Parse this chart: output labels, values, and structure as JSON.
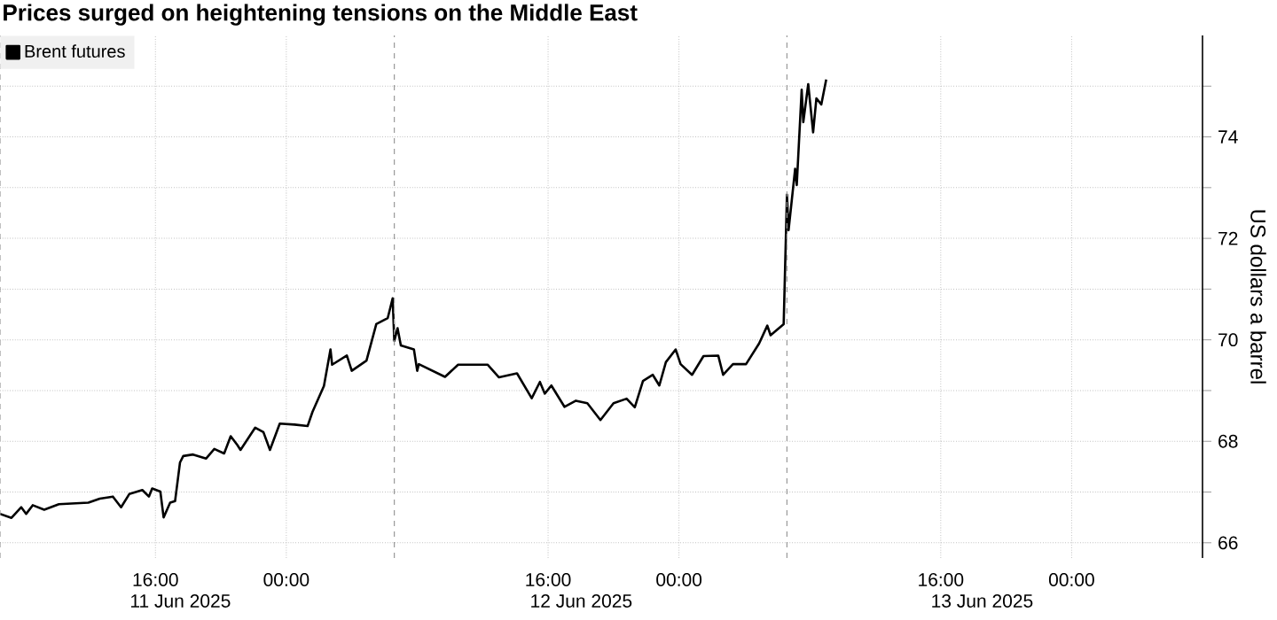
{
  "chart_data": {
    "type": "line",
    "title": "Prices surged on heightening tensions on the Middle East",
    "ylabel": "US dollars a barrel",
    "x": [
      "2025-06-11T06:30",
      "2025-06-11T07:12",
      "2025-06-11T07:48",
      "2025-06-11T08:06",
      "2025-06-11T08:30",
      "2025-06-11T09:12",
      "2025-06-11T10:06",
      "2025-06-11T11:54",
      "2025-06-11T12:36",
      "2025-06-11T13:24",
      "2025-06-11T13:54",
      "2025-06-11T14:24",
      "2025-06-11T15:12",
      "2025-06-11T15:36",
      "2025-06-11T15:48",
      "2025-06-11T16:18",
      "2025-06-11T16:30",
      "2025-06-11T16:54",
      "2025-06-11T17:12",
      "2025-06-11T17:30",
      "2025-06-11T17:42",
      "2025-06-11T18:18",
      "2025-06-11T19:06",
      "2025-06-11T19:36",
      "2025-06-11T20:12",
      "2025-06-11T20:36",
      "2025-06-11T21:00",
      "2025-06-11T21:12",
      "2025-06-11T22:06",
      "2025-06-11T22:36",
      "2025-06-11T23:00",
      "2025-06-11T23:36",
      "2025-06-12T00:30",
      "2025-06-12T01:18",
      "2025-06-12T01:36",
      "2025-06-12T02:18",
      "2025-06-12T02:42",
      "2025-06-12T02:48",
      "2025-06-12T03:42",
      "2025-06-12T04:00",
      "2025-06-12T04:54",
      "2025-06-12T05:30",
      "2025-06-12T06:12",
      "2025-06-12T06:30",
      "2025-06-12T06:36",
      "2025-06-12T06:48",
      "2025-06-12T07:00",
      "2025-06-12T07:48",
      "2025-06-12T08:00",
      "2025-06-12T08:06",
      "2025-06-12T09:42",
      "2025-06-12T10:30",
      "2025-06-12T12:18",
      "2025-06-12T13:00",
      "2025-06-12T14:06",
      "2025-06-12T15:00",
      "2025-06-12T15:30",
      "2025-06-12T15:48",
      "2025-06-12T16:12",
      "2025-06-12T17:00",
      "2025-06-12T17:42",
      "2025-06-12T18:24",
      "2025-06-12T19:12",
      "2025-06-12T20:00",
      "2025-06-12T20:48",
      "2025-06-12T21:18",
      "2025-06-12T21:48",
      "2025-06-12T22:24",
      "2025-06-12T22:48",
      "2025-06-12T23:12",
      "2025-06-12T23:48",
      "2025-06-13T00:06",
      "2025-06-13T00:48",
      "2025-06-13T01:30",
      "2025-06-13T02:24",
      "2025-06-13T02:42",
      "2025-06-13T03:18",
      "2025-06-13T04:06",
      "2025-06-13T04:54",
      "2025-06-13T05:24",
      "2025-06-13T05:36",
      "2025-06-13T06:24",
      "2025-06-13T06:36",
      "2025-06-13T06:42",
      "2025-06-13T07:06",
      "2025-06-13T07:12",
      "2025-06-13T07:30",
      "2025-06-13T07:36",
      "2025-06-13T07:54",
      "2025-06-13T08:12",
      "2025-06-13T08:24",
      "2025-06-13T08:42",
      "2025-06-13T09:00"
    ],
    "series": [
      {
        "name": "Brent futures",
        "color": "#000000",
        "values": [
          66.57,
          66.49,
          66.7,
          66.57,
          66.74,
          66.65,
          66.76,
          66.79,
          66.87,
          66.91,
          66.7,
          66.96,
          67.04,
          66.91,
          67.07,
          67.01,
          66.5,
          66.79,
          66.82,
          67.58,
          67.71,
          67.74,
          67.66,
          67.85,
          67.76,
          68.1,
          67.93,
          67.83,
          68.27,
          68.18,
          67.83,
          68.35,
          68.33,
          68.3,
          68.58,
          69.09,
          69.81,
          69.51,
          69.69,
          69.39,
          69.59,
          70.31,
          70.43,
          70.82,
          69.98,
          70.23,
          69.89,
          69.81,
          69.39,
          69.52,
          69.27,
          69.51,
          69.51,
          69.26,
          69.34,
          68.85,
          69.17,
          68.94,
          69.1,
          68.68,
          68.8,
          68.75,
          68.42,
          68.75,
          68.84,
          68.67,
          69.19,
          69.31,
          69.1,
          69.56,
          69.81,
          69.52,
          69.31,
          69.68,
          69.69,
          69.31,
          69.52,
          69.52,
          69.93,
          70.28,
          70.09,
          70.31,
          72.86,
          72.16,
          73.37,
          73.05,
          74.93,
          74.29,
          75.04,
          74.09,
          74.76,
          74.64,
          75.13
        ]
      }
    ],
    "xlim": [
      "2025-06-11T06:30",
      "2025-06-14T08:00"
    ],
    "xticks": [
      {
        "value": "2025-06-11T16:00",
        "label": "16:00"
      },
      {
        "value": "2025-06-12T00:00",
        "label": "00:00"
      },
      {
        "value": "2025-06-12T16:00",
        "label": "16:00"
      },
      {
        "value": "2025-06-13T00:00",
        "label": "00:00"
      },
      {
        "value": "2025-06-13T16:00",
        "label": "16:00"
      },
      {
        "value": "2025-06-14T00:00",
        "label": "00:00"
      }
    ],
    "ylim": [
      65.7,
      76
    ],
    "yticks": [
      {
        "value": 66,
        "label": "66"
      },
      {
        "value": 67,
        "label": null
      },
      {
        "value": 68,
        "label": "68"
      },
      {
        "value": 69,
        "label": null
      },
      {
        "value": 70,
        "label": "70"
      },
      {
        "value": 71,
        "label": null
      },
      {
        "value": 72,
        "label": "72"
      },
      {
        "value": 73,
        "label": null
      },
      {
        "value": 74,
        "label": "74"
      },
      {
        "value": 75,
        "label": null
      }
    ],
    "ref_lines": [
      {
        "axis": "x",
        "value": "2025-06-11T06:30",
        "line_style": "dashed",
        "color": "#999999"
      },
      {
        "axis": "x",
        "value": "2025-06-12T06:36",
        "line_style": "dashed",
        "color": "#999999"
      },
      {
        "axis": "x",
        "value": "2025-06-13T06:36",
        "line_style": "dashed",
        "color": "#999999"
      }
    ],
    "annotations": [
      "11 Jun 2025",
      "12 Jun 2025",
      "13 Jun 2025"
    ],
    "grid": true,
    "legend": "top left",
    "marker": "none",
    "line_style": "solid"
  }
}
